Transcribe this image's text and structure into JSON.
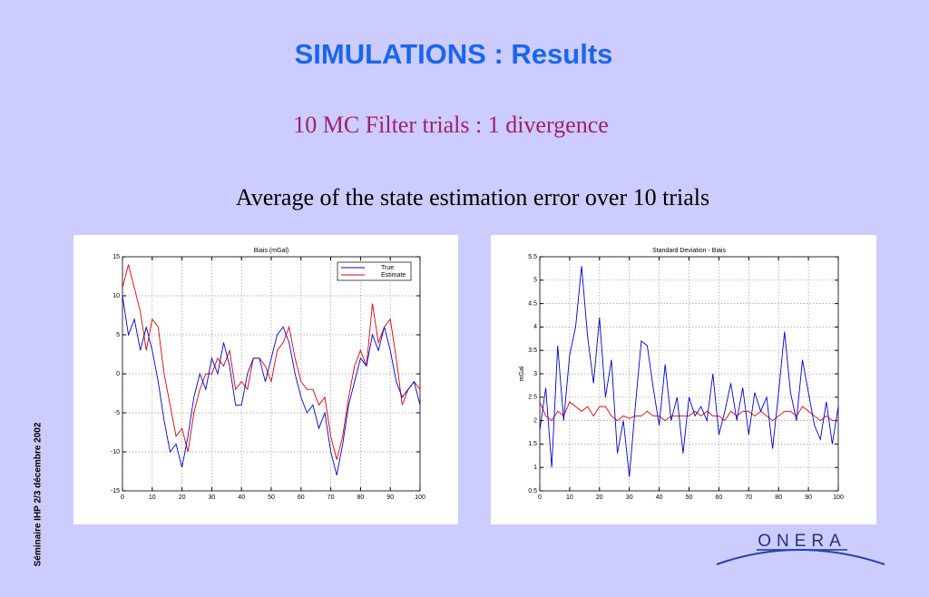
{
  "slide": {
    "title": "SIMULATIONS : Results",
    "subtitle": "10 MC Filter trials : 1 divergence",
    "heading": "Average of the state estimation error over 10 trials",
    "footer": "Séminaire IHP  2/3  décembre 2002",
    "logo": "ONERA"
  },
  "chart_data": [
    {
      "type": "line",
      "title": "Biais (mGal)",
      "x": [
        0,
        2,
        4,
        6,
        8,
        10,
        12,
        14,
        16,
        18,
        20,
        22,
        24,
        26,
        28,
        30,
        32,
        34,
        36,
        38,
        40,
        42,
        44,
        46,
        48,
        50,
        52,
        54,
        56,
        58,
        60,
        62,
        64,
        66,
        68,
        70,
        72,
        74,
        76,
        78,
        80,
        82,
        84,
        86,
        88,
        90,
        92,
        94,
        96,
        98,
        100
      ],
      "series": [
        {
          "name": "True",
          "color": "#0000cc",
          "values": [
            10,
            5,
            7,
            3,
            6,
            3,
            -1,
            -6,
            -10,
            -9,
            -12,
            -8,
            -3,
            0,
            -2,
            2,
            0,
            4,
            1,
            -4,
            -4,
            0,
            2,
            2,
            -1,
            2,
            5,
            6,
            4,
            0,
            -3,
            -5,
            -4,
            -7,
            -5,
            -10,
            -13,
            -9,
            -4,
            -1,
            2,
            1,
            5,
            3,
            6,
            3,
            -1,
            -3,
            -2,
            -1,
            -4
          ]
        },
        {
          "name": "Estimate",
          "color": "#dd0000",
          "values": [
            11,
            14,
            11,
            8,
            3,
            7,
            6,
            0,
            -4,
            -8,
            -7,
            -10,
            -5,
            -2,
            0,
            0,
            2,
            1,
            3,
            -2,
            -1,
            -2,
            2,
            2,
            1,
            -1,
            3,
            4,
            6,
            2,
            -1,
            -2,
            -2,
            -4,
            -3,
            -8,
            -11,
            -8,
            -3,
            1,
            3,
            1,
            9,
            4,
            6,
            7,
            2,
            -4,
            -2,
            -1,
            -2
          ]
        }
      ],
      "xlim": [
        0,
        100
      ],
      "xticks": [
        0,
        10,
        20,
        30,
        40,
        50,
        60,
        70,
        80,
        90,
        100
      ],
      "ylim": [
        -15,
        15
      ],
      "yticks": [
        -15,
        -10,
        -5,
        0,
        5,
        10,
        15
      ],
      "grid": true,
      "legend": "top-right"
    },
    {
      "type": "line",
      "title": "Standard Deviation - Biais",
      "y_label": "mGal",
      "x": [
        0,
        2,
        4,
        6,
        8,
        10,
        12,
        14,
        16,
        18,
        20,
        22,
        24,
        26,
        28,
        30,
        32,
        34,
        36,
        38,
        40,
        42,
        44,
        46,
        48,
        50,
        52,
        54,
        56,
        58,
        60,
        62,
        64,
        66,
        68,
        70,
        72,
        74,
        76,
        78,
        80,
        82,
        84,
        86,
        88,
        90,
        92,
        94,
        96,
        98,
        100
      ],
      "series": [
        {
          "name": "Blue",
          "color": "#0000cc",
          "values": [
            1.8,
            2.7,
            1.0,
            3.6,
            2.0,
            3.4,
            4.0,
            5.3,
            3.8,
            2.8,
            4.2,
            2.5,
            3.3,
            1.3,
            2.0,
            0.8,
            2.3,
            3.7,
            3.6,
            2.7,
            1.9,
            3.2,
            2.0,
            2.5,
            1.3,
            2.5,
            2.1,
            2.3,
            2.0,
            3.0,
            1.7,
            2.2,
            2.8,
            2.0,
            2.7,
            1.7,
            2.6,
            2.2,
            2.5,
            1.4,
            2.6,
            3.9,
            2.6,
            2.0,
            3.3,
            2.6,
            1.9,
            1.6,
            2.4,
            1.5,
            2.3
          ]
        },
        {
          "name": "Red",
          "color": "#dd0000",
          "values": [
            2.4,
            2.1,
            2.0,
            2.2,
            2.1,
            2.4,
            2.3,
            2.2,
            2.3,
            2.1,
            2.3,
            2.3,
            2.1,
            2.0,
            2.1,
            2.05,
            2.1,
            2.1,
            2.2,
            2.1,
            2.1,
            2.0,
            2.1,
            2.1,
            2.1,
            2.1,
            2.2,
            2.1,
            2.2,
            2.1,
            2.1,
            2.0,
            2.2,
            2.1,
            2.2,
            2.2,
            2.1,
            2.2,
            2.1,
            2.0,
            2.1,
            2.2,
            2.2,
            2.1,
            2.3,
            2.2,
            2.1,
            2.0,
            2.1,
            2.0,
            2.0
          ]
        }
      ],
      "xlim": [
        0,
        100
      ],
      "xticks": [
        0,
        10,
        20,
        30,
        40,
        50,
        60,
        70,
        80,
        90,
        100
      ],
      "ylim": [
        0.5,
        5.5
      ],
      "yticks": [
        0.5,
        1,
        1.5,
        2,
        2.5,
        3,
        3.5,
        4,
        4.5,
        5,
        5.5
      ],
      "grid": true
    }
  ]
}
